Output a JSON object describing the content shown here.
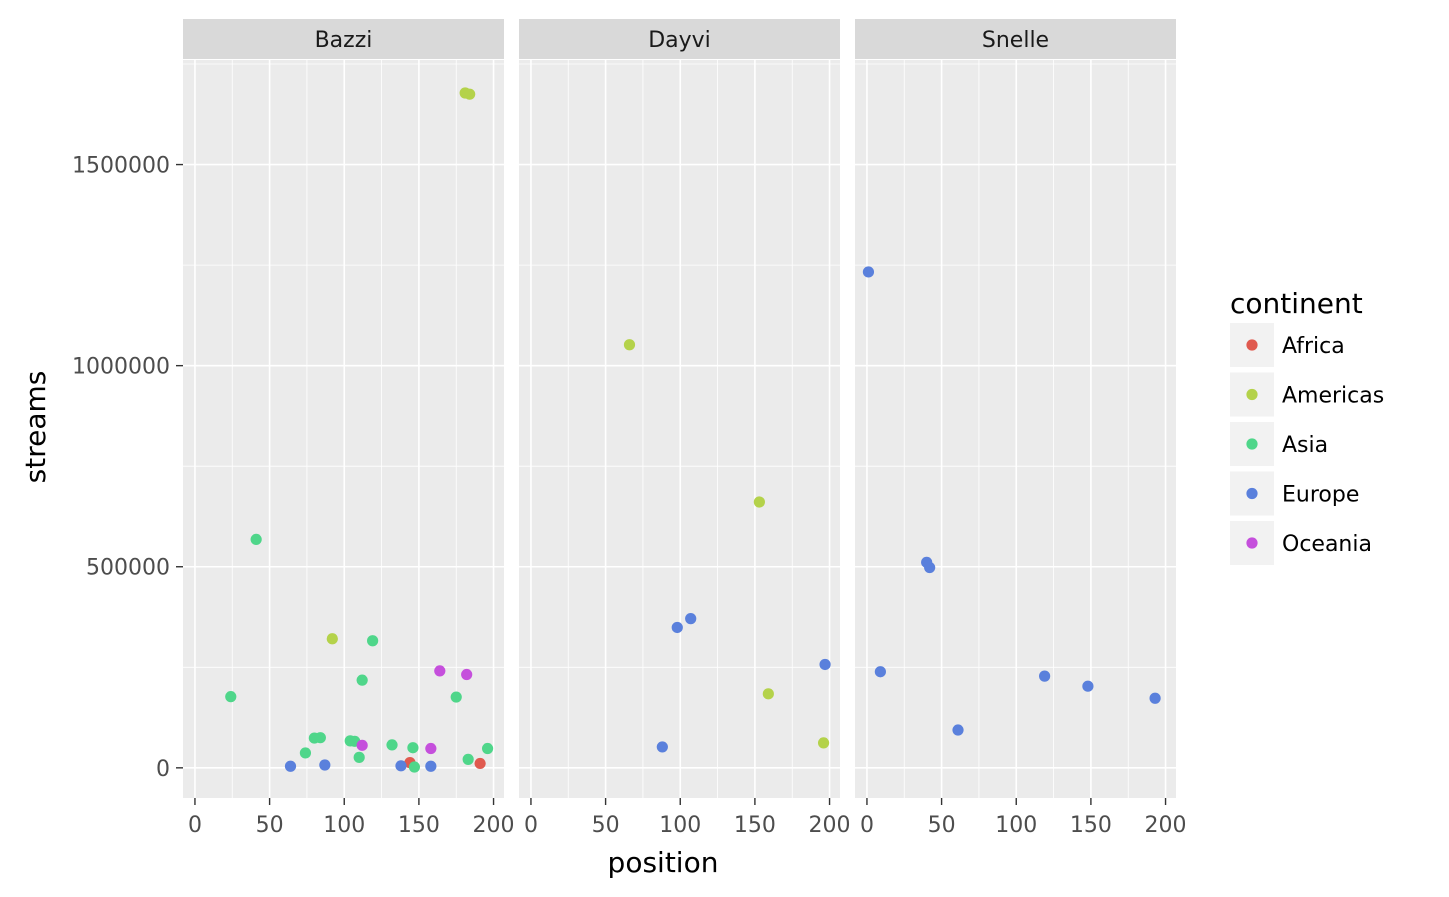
{
  "chart_data": {
    "type": "scatter",
    "facet_by": "artist",
    "xlabel": "position",
    "ylabel": "streams",
    "xlim": [
      -8,
      207
    ],
    "ylim": [
      -75000,
      1760000
    ],
    "x_ticks": [
      0,
      50,
      100,
      150,
      200
    ],
    "y_ticks": [
      0,
      500000,
      1000000,
      1500000
    ],
    "y_tick_labels": [
      "0",
      "500000",
      "1000000",
      "1500000"
    ],
    "grid": true,
    "legend": {
      "title": "continent",
      "placement": "right",
      "entries": [
        {
          "name": "Africa",
          "color": "#e05a4f"
        },
        {
          "name": "Americas",
          "color": "#b4d24a"
        },
        {
          "name": "Asia",
          "color": "#4fd68a"
        },
        {
          "name": "Europe",
          "color": "#5a80dc"
        },
        {
          "name": "Oceania",
          "color": "#c54fdc"
        }
      ]
    },
    "panels": [
      {
        "label": "Bazzi",
        "points": [
          {
            "x": 181,
            "y": 1678000,
            "c": "Americas"
          },
          {
            "x": 184,
            "y": 1675000,
            "c": "Americas"
          },
          {
            "x": 41,
            "y": 568000,
            "c": "Asia"
          },
          {
            "x": 92,
            "y": 321000,
            "c": "Americas"
          },
          {
            "x": 119,
            "y": 316000,
            "c": "Asia"
          },
          {
            "x": 164,
            "y": 241000,
            "c": "Oceania"
          },
          {
            "x": 182,
            "y": 232000,
            "c": "Oceania"
          },
          {
            "x": 112,
            "y": 218000,
            "c": "Asia"
          },
          {
            "x": 24,
            "y": 177000,
            "c": "Asia"
          },
          {
            "x": 175,
            "y": 176000,
            "c": "Asia"
          },
          {
            "x": 80,
            "y": 74000,
            "c": "Asia"
          },
          {
            "x": 84,
            "y": 75000,
            "c": "Asia"
          },
          {
            "x": 104,
            "y": 67000,
            "c": "Asia"
          },
          {
            "x": 107,
            "y": 66000,
            "c": "Asia"
          },
          {
            "x": 112,
            "y": 56000,
            "c": "Oceania"
          },
          {
            "x": 132,
            "y": 57000,
            "c": "Asia"
          },
          {
            "x": 146,
            "y": 50000,
            "c": "Asia"
          },
          {
            "x": 158,
            "y": 48000,
            "c": "Oceania"
          },
          {
            "x": 196,
            "y": 48000,
            "c": "Asia"
          },
          {
            "x": 74,
            "y": 37000,
            "c": "Asia"
          },
          {
            "x": 110,
            "y": 26000,
            "c": "Asia"
          },
          {
            "x": 183,
            "y": 21000,
            "c": "Asia"
          },
          {
            "x": 144,
            "y": 13000,
            "c": "Africa"
          },
          {
            "x": 191,
            "y": 11000,
            "c": "Africa"
          },
          {
            "x": 64,
            "y": 4000,
            "c": "Europe"
          },
          {
            "x": 87,
            "y": 7000,
            "c": "Europe"
          },
          {
            "x": 138,
            "y": 5000,
            "c": "Europe"
          },
          {
            "x": 147,
            "y": 2000,
            "c": "Asia"
          },
          {
            "x": 158,
            "y": 4000,
            "c": "Europe"
          }
        ]
      },
      {
        "label": "Dayvi",
        "points": [
          {
            "x": 66,
            "y": 1052000,
            "c": "Americas"
          },
          {
            "x": 153,
            "y": 661000,
            "c": "Americas"
          },
          {
            "x": 107,
            "y": 371000,
            "c": "Europe"
          },
          {
            "x": 98,
            "y": 349000,
            "c": "Europe"
          },
          {
            "x": 197,
            "y": 257000,
            "c": "Europe"
          },
          {
            "x": 159,
            "y": 184000,
            "c": "Americas"
          },
          {
            "x": 196,
            "y": 62000,
            "c": "Americas"
          },
          {
            "x": 88,
            "y": 52000,
            "c": "Europe"
          }
        ]
      },
      {
        "label": "Snelle",
        "points": [
          {
            "x": 1,
            "y": 1233000,
            "c": "Europe"
          },
          {
            "x": 40,
            "y": 511000,
            "c": "Europe"
          },
          {
            "x": 42,
            "y": 498000,
            "c": "Europe"
          },
          {
            "x": 9,
            "y": 239000,
            "c": "Europe"
          },
          {
            "x": 119,
            "y": 228000,
            "c": "Europe"
          },
          {
            "x": 148,
            "y": 203000,
            "c": "Europe"
          },
          {
            "x": 193,
            "y": 173000,
            "c": "Europe"
          },
          {
            "x": 61,
            "y": 94000,
            "c": "Europe"
          }
        ]
      }
    ]
  }
}
